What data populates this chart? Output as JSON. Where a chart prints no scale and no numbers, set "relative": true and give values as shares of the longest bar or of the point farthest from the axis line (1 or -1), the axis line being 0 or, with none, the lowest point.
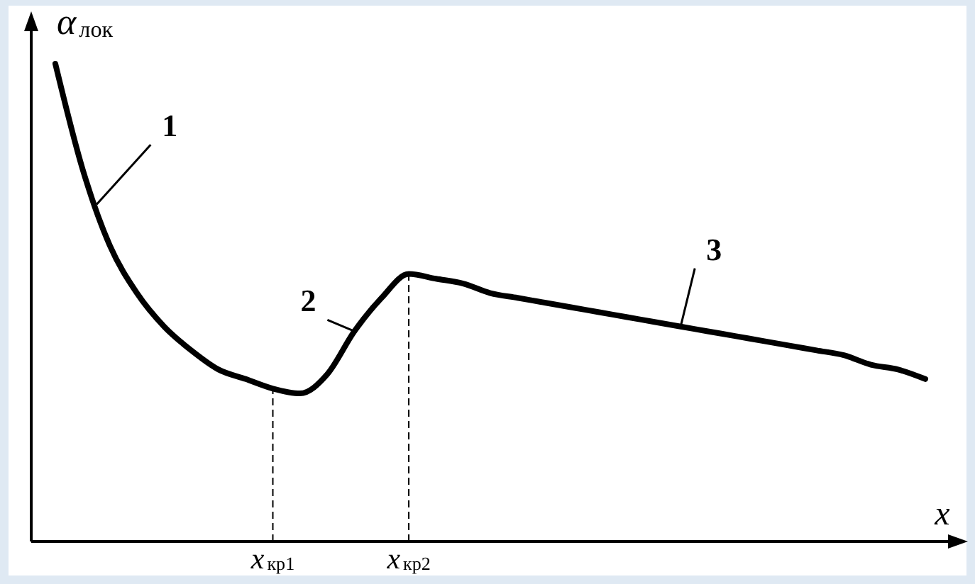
{
  "chart_data": {
    "type": "line",
    "relative": true,
    "xlabel": "x",
    "ylabel": "α$_{лок}$",
    "color": "#000000",
    "categories": [
      null,
      null,
      null,
      null,
      null,
      null,
      null,
      null,
      "x$_{кр1}$",
      null,
      null,
      null,
      null,
      "x$_{кр2}$",
      null,
      null,
      null,
      null,
      null,
      null,
      null,
      null,
      null,
      null,
      null,
      null,
      null,
      null,
      null,
      null,
      null,
      null,
      null
    ],
    "values": [
      1.0,
      0.78,
      0.62,
      0.52,
      0.45,
      0.4,
      0.36,
      0.34,
      0.32,
      0.31,
      0.35,
      0.44,
      0.51,
      0.56,
      0.55,
      0.54,
      0.52,
      0.51,
      0.5,
      0.49,
      0.48,
      0.47,
      0.46,
      0.45,
      0.44,
      0.43,
      0.42,
      0.41,
      0.4,
      0.39,
      0.37,
      0.36,
      0.34
    ],
    "ref_lines": [
      {
        "axis": "x",
        "value": "x$_{кр1}$",
        "line_style": "dashed"
      },
      {
        "axis": "x",
        "value": "x$_{кр2}$",
        "line_style": "dashed"
      }
    ],
    "annotations": [
      "1",
      "2",
      "3"
    ],
    "grid": false,
    "marker": "none",
    "line_style": "solid"
  }
}
